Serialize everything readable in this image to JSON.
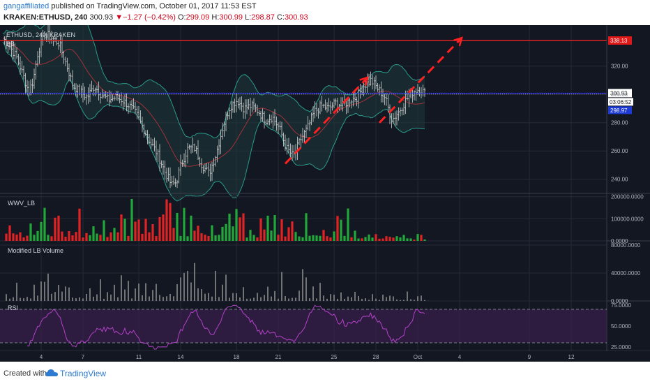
{
  "header": {
    "author": "gangaffiliated",
    "published_text": "published on TradingView.com, October 01, 2017 11:53 EST",
    "symbol": "KRAKEN:ETHUSD, 240",
    "price": "300.93",
    "down_arrow": "▼",
    "change": "−1.27 (−0.42%)",
    "o_label": "O:",
    "o_value": "299.09",
    "h_label": "H:",
    "h_value": "300.99",
    "l_label": "L:",
    "l_value": "298.87",
    "c_label": "C:",
    "c_value": "300.93"
  },
  "footer": {
    "created_with": "Created with",
    "brand": "TradingView"
  },
  "colors": {
    "background": "#131722",
    "grid": "#262a36",
    "candle": "#d6d6d6",
    "bb_band": "#2a9b8c",
    "bb_fill": "#1e3a3a",
    "bb_basis": "#a3303a",
    "up_volume": "#22a83a",
    "down_volume": "#e02424",
    "gray_volume": "#8a8a8a",
    "rsi_line": "#b341c8",
    "rsi_band": "#3a1f4d",
    "resistance_line": "#e02424",
    "price_line": "#2b2bff",
    "arrow": "#ff2020"
  },
  "chart_data": {
    "type": "candlestick",
    "x_tick_labels": [
      "4",
      "7",
      "11",
      "14",
      "18",
      "21",
      "25",
      "28",
      "Oct",
      "4",
      "9",
      "12"
    ],
    "panes": [
      {
        "name": "price",
        "legend": "ETHUSD, 240, KRAKEN",
        "indicator": "BB",
        "y_ticks": [
          240,
          260,
          280,
          300,
          320
        ],
        "ylim": [
          230,
          349
        ],
        "y_tick_labels": [
          "240.00",
          "260.00",
          "280.00",
          "300.00",
          "320.00"
        ],
        "close_path": [
          [
            0,
            340
          ],
          [
            3,
            334
          ],
          [
            6,
            326
          ],
          [
            9,
            312
          ],
          [
            11,
            302
          ],
          [
            13,
            310
          ],
          [
            15,
            330
          ],
          [
            18,
            343
          ],
          [
            21,
            340
          ],
          [
            24,
            336
          ],
          [
            27,
            322
          ],
          [
            30,
            306
          ],
          [
            33,
            302
          ],
          [
            36,
            298
          ],
          [
            39,
            306
          ],
          [
            42,
            300
          ],
          [
            45,
            296
          ],
          [
            48,
            298
          ],
          [
            51,
            296
          ],
          [
            54,
            292
          ],
          [
            57,
            286
          ],
          [
            60,
            276
          ],
          [
            63,
            266
          ],
          [
            66,
            258
          ],
          [
            69,
            246
          ],
          [
            72,
            236
          ],
          [
            74,
            238
          ],
          [
            76,
            250
          ],
          [
            79,
            262
          ],
          [
            82,
            262
          ],
          [
            85,
            250
          ],
          [
            88,
            244
          ],
          [
            91,
            258
          ],
          [
            94,
            278
          ],
          [
            97,
            292
          ],
          [
            100,
            296
          ],
          [
            103,
            290
          ],
          [
            106,
            292
          ],
          [
            109,
            288
          ],
          [
            112,
            282
          ],
          [
            115,
            284
          ],
          [
            118,
            276
          ],
          [
            121,
            262
          ],
          [
            124,
            256
          ],
          [
            127,
            268
          ],
          [
            130,
            276
          ],
          [
            133,
            288
          ],
          [
            136,
            292
          ],
          [
            139,
            290
          ],
          [
            142,
            294
          ],
          [
            145,
            292
          ],
          [
            148,
            296
          ],
          [
            151,
            298
          ],
          [
            154,
            306
          ],
          [
            157,
            310
          ],
          [
            160,
            304
          ],
          [
            163,
            298
          ],
          [
            166,
            282
          ],
          [
            169,
            288
          ],
          [
            172,
            296
          ],
          [
            175,
            302
          ],
          [
            178,
            304
          ],
          [
            180,
            301
          ]
        ],
        "candle_spacing": 2.5,
        "resistance": {
          "value": 338.13,
          "label": "338.13"
        },
        "price_line": {
          "value": 300.93,
          "label": "300.93"
        },
        "countdown": "03:06:52",
        "low_tag": {
          "value": 298.97,
          "label": "298.97"
        },
        "arrows": [
          {
            "from": [
              120,
              251
            ],
            "to": [
              155,
              312
            ],
            "dashed": true
          },
          {
            "from": [
              160,
              280
            ],
            "to": [
              195,
              340
            ],
            "dashed": true
          }
        ]
      },
      {
        "name": "volume",
        "legend": "WWV_LB",
        "y_ticks": [
          0,
          100000,
          200000
        ],
        "ylim": [
          0,
          215000
        ],
        "y_tick_labels": [
          "0.0000",
          "100000.0000",
          "200000.0000"
        ]
      },
      {
        "name": "modified-volume",
        "legend": "Modified LB Volume",
        "y_ticks": [
          0,
          40000,
          80000
        ],
        "ylim": [
          0,
          86000
        ],
        "y_tick_labels": [
          "0.0000",
          "40000.0000",
          "80000.0000"
        ]
      },
      {
        "name": "rsi",
        "legend": "RSI",
        "y_ticks": [
          25,
          50,
          75
        ],
        "ylim": [
          20,
          80
        ],
        "y_tick_labels": [
          "25.0000",
          "50.0000",
          "75.0000"
        ],
        "band": [
          30,
          70
        ]
      }
    ]
  }
}
